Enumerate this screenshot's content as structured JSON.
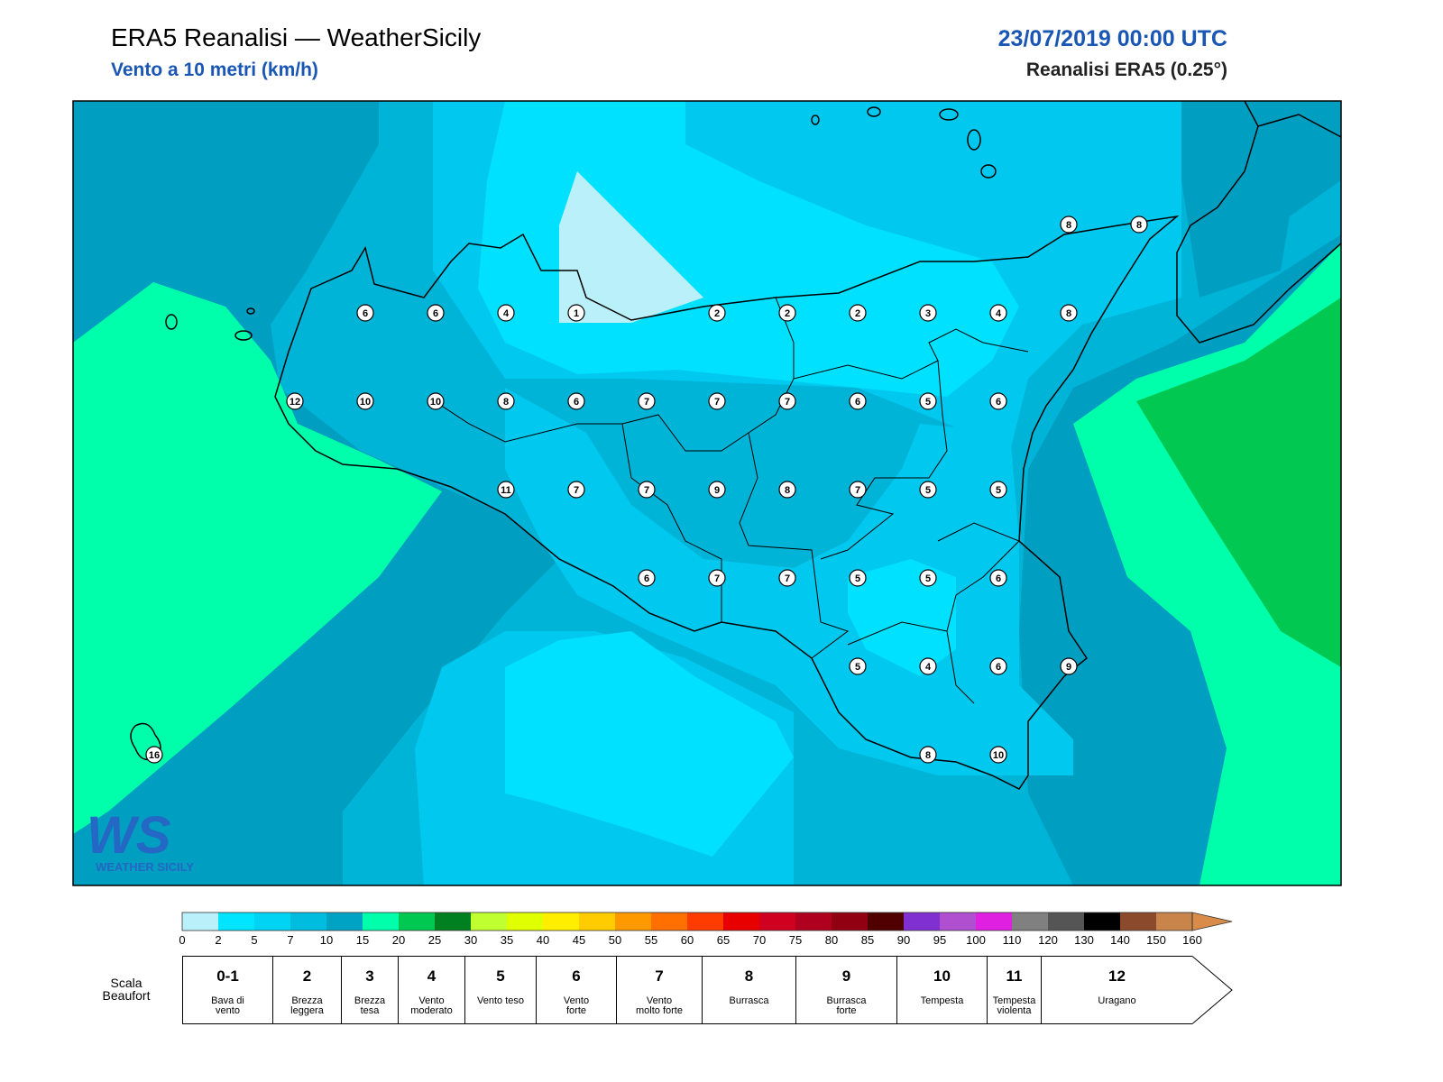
{
  "header": {
    "title": "ERA5 Reanalisi — WeatherSicily",
    "subtitle": "Vento a 10 metri (km/h)",
    "date": "23/07/2019 00:00 UTC",
    "source": "Reanalisi ERA5 (0.25°)"
  },
  "logo": {
    "mark": "WS",
    "name": "WEATHER SICILY"
  },
  "wind_grid": {
    "rows": [
      [
        null,
        null,
        null,
        null,
        null,
        null,
        null,
        null,
        null,
        null,
        null,
        null,
        null,
        8,
        8
      ],
      [
        null,
        null,
        null,
        6,
        6,
        4,
        1,
        null,
        2,
        2,
        2,
        3,
        4,
        8,
        null
      ],
      [
        null,
        null,
        12,
        10,
        10,
        8,
        6,
        7,
        7,
        7,
        6,
        5,
        6,
        null,
        null
      ],
      [
        null,
        null,
        null,
        null,
        null,
        11,
        7,
        7,
        9,
        8,
        7,
        5,
        5,
        null,
        null
      ],
      [
        null,
        null,
        null,
        null,
        null,
        null,
        null,
        6,
        7,
        7,
        5,
        5,
        6,
        null,
        null
      ],
      [
        null,
        null,
        null,
        null,
        null,
        null,
        null,
        null,
        null,
        null,
        5,
        4,
        6,
        9,
        null
      ],
      [
        16,
        null,
        null,
        null,
        null,
        null,
        null,
        null,
        null,
        null,
        null,
        8,
        10,
        null,
        null
      ]
    ]
  },
  "colorbar": {
    "ticks": [
      0,
      2,
      5,
      7,
      10,
      15,
      20,
      25,
      30,
      35,
      40,
      45,
      50,
      55,
      60,
      65,
      70,
      75,
      80,
      85,
      90,
      95,
      100,
      110,
      120,
      130,
      140,
      150,
      160
    ],
    "colors": [
      "#b9f0fa",
      "#00e5ff",
      "#00d3f4",
      "#00bde0",
      "#00a3c4",
      "#00ffaa",
      "#00c850",
      "#008020",
      "#c0ff30",
      "#e0ff00",
      "#ffee00",
      "#ffcc00",
      "#ff9900",
      "#ff7000",
      "#ff3c00",
      "#e80000",
      "#d00020",
      "#b00020",
      "#900010",
      "#500000",
      "#8030d0",
      "#b050d0",
      "#e020e0",
      "#808080",
      "#555555",
      "#000000",
      "#8b4a2b",
      "#c8844a"
    ],
    "extend_color": "#d98c4a"
  },
  "beaufort": {
    "label": "Scala Beaufort",
    "levels": [
      {
        "force": "0-1",
        "name": "Bava di vento"
      },
      {
        "force": "2",
        "name": "Brezza leggera"
      },
      {
        "force": "3",
        "name": "Brezza tesa"
      },
      {
        "force": "4",
        "name": "Vento moderato"
      },
      {
        "force": "5",
        "name": "Vento teso"
      },
      {
        "force": "6",
        "name": "Vento forte"
      },
      {
        "force": "7",
        "name": "Vento molto forte"
      },
      {
        "force": "8",
        "name": "Burrasca"
      },
      {
        "force": "9",
        "name": "Burrasca forte"
      },
      {
        "force": "10",
        "name": "Tempesta"
      },
      {
        "force": "11",
        "name": "Tempesta violenta"
      },
      {
        "force": "12",
        "name": "Uragano"
      }
    ]
  }
}
